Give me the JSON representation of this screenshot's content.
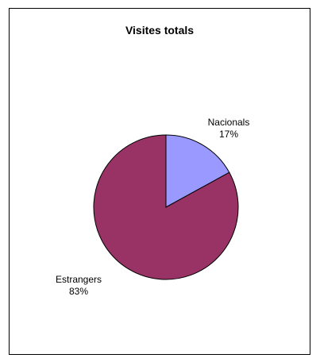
{
  "chart_data": {
    "type": "pie",
    "title": "Visites totals",
    "categories": [
      "Nacionals",
      "Estrangers"
    ],
    "values": [
      17,
      83
    ],
    "value_labels": [
      "17%",
      "83%"
    ],
    "colors": [
      "#9999ff",
      "#993366"
    ],
    "start_angle_deg": 0,
    "direction": "clockwise",
    "legend": "none",
    "grid": false
  }
}
